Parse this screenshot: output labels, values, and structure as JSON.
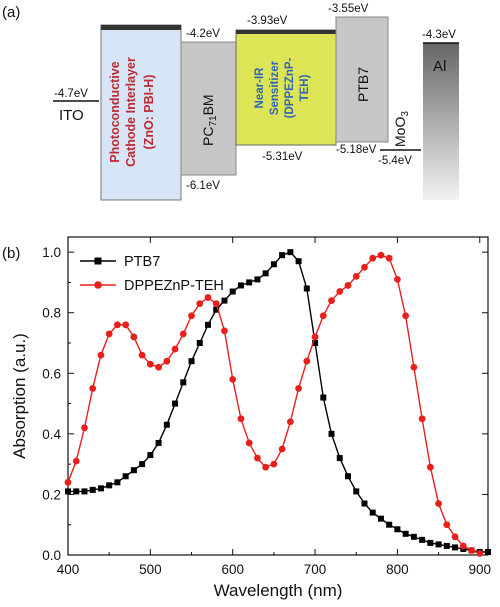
{
  "diagram": {
    "panel_label": "(a)",
    "layers": [
      {
        "name": "ITO",
        "top": "-4.7eV"
      },
      {
        "name_lines": [
          "Photoconductive",
          "Cathode Interlayer",
          "(ZnO: PBI-H)"
        ]
      },
      {
        "name_base": "PC",
        "name_sub": "71",
        "name_tail": "BM",
        "top": "-4.2eV",
        "bottom": "-6.1eV"
      },
      {
        "name_lines": [
          "Near-IR",
          "Sensitizer",
          "(DPPEZnP-",
          "TEH)"
        ],
        "top": "-3.93eV",
        "bottom": "-5.31eV"
      },
      {
        "name": "PTB7",
        "top": "-3.55eV",
        "bottom": "-5.18eV"
      },
      {
        "name_base": "MoO",
        "name_sub": "3",
        "bottom": "-5.4eV"
      },
      {
        "name": "Al",
        "top": "-4.3eV"
      }
    ],
    "colors": {
      "interlayer": "#cfe0f4",
      "interlayer_text": "#c0282f",
      "sensitizer": "#e2e85a",
      "sensitizer_text": "#2f66b8",
      "gray_box": "#c6c6c6"
    }
  },
  "chart_data": {
    "panel_label": "(b)",
    "type": "line",
    "xlabel": "Wavelength (nm)",
    "ylabel": "Absorption (a.u.)",
    "xlim": [
      400,
      910
    ],
    "ylim": [
      0.0,
      1.05
    ],
    "xticks": [
      "400",
      "500",
      "600",
      "700",
      "800",
      "900"
    ],
    "yticks": [
      "0.0",
      "0.2",
      "0.4",
      "0.6",
      "0.8",
      "1.0"
    ],
    "legend_position": "top-left",
    "series": [
      {
        "name": "PTB7",
        "color": "#000000",
        "marker": "square",
        "x": [
          400,
          410,
          420,
          430,
          440,
          450,
          460,
          470,
          480,
          490,
          500,
          510,
          520,
          530,
          540,
          550,
          560,
          570,
          580,
          590,
          600,
          610,
          620,
          630,
          640,
          650,
          660,
          670,
          680,
          690,
          700,
          710,
          720,
          730,
          740,
          750,
          760,
          770,
          780,
          790,
          800,
          810,
          820,
          830,
          840,
          850,
          860,
          870,
          880,
          890,
          900,
          910
        ],
        "values": [
          0.21,
          0.21,
          0.21,
          0.215,
          0.22,
          0.23,
          0.24,
          0.26,
          0.28,
          0.3,
          0.33,
          0.37,
          0.43,
          0.5,
          0.57,
          0.64,
          0.7,
          0.76,
          0.81,
          0.84,
          0.87,
          0.89,
          0.9,
          0.91,
          0.93,
          0.96,
          0.99,
          1.0,
          0.97,
          0.88,
          0.7,
          0.52,
          0.4,
          0.32,
          0.26,
          0.21,
          0.17,
          0.14,
          0.12,
          0.1,
          0.085,
          0.07,
          0.06,
          0.05,
          0.04,
          0.035,
          0.03,
          0.025,
          0.02,
          0.015,
          0.01,
          0.01
        ]
      },
      {
        "name": "DPPEZnP-TEH",
        "color": "#e8201c",
        "marker": "circle",
        "x": [
          400,
          410,
          420,
          430,
          440,
          450,
          460,
          470,
          480,
          490,
          500,
          510,
          520,
          530,
          540,
          550,
          560,
          570,
          580,
          590,
          600,
          610,
          620,
          630,
          640,
          650,
          660,
          670,
          680,
          690,
          700,
          710,
          720,
          730,
          740,
          750,
          760,
          770,
          780,
          790,
          800,
          810,
          820,
          830,
          840,
          850,
          860,
          870,
          880,
          890,
          900
        ],
        "values": [
          0.24,
          0.31,
          0.42,
          0.55,
          0.66,
          0.73,
          0.76,
          0.76,
          0.72,
          0.66,
          0.63,
          0.62,
          0.64,
          0.68,
          0.73,
          0.79,
          0.83,
          0.85,
          0.83,
          0.74,
          0.58,
          0.45,
          0.37,
          0.32,
          0.29,
          0.3,
          0.35,
          0.44,
          0.55,
          0.64,
          0.72,
          0.79,
          0.84,
          0.87,
          0.89,
          0.92,
          0.95,
          0.98,
          0.99,
          0.98,
          0.91,
          0.79,
          0.62,
          0.45,
          0.29,
          0.17,
          0.1,
          0.06,
          0.03,
          0.015,
          0.005
        ]
      }
    ]
  }
}
